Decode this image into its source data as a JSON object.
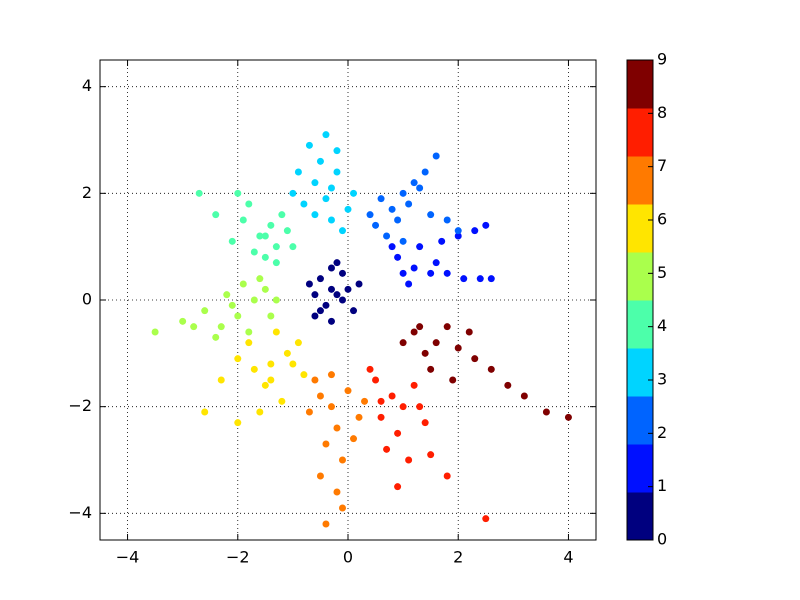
{
  "chart_data": {
    "type": "scatter",
    "xlim": [
      -4.5,
      4.5
    ],
    "ylim": [
      -4.5,
      4.5
    ],
    "xticks": [
      {
        "value": -4,
        "label": "−4"
      },
      {
        "value": -2,
        "label": "−2"
      },
      0,
      2,
      4
    ],
    "yticks": [
      {
        "value": -4,
        "label": "−4"
      },
      {
        "value": -2,
        "label": "−2"
      },
      0,
      2,
      4
    ],
    "grid": true,
    "colorbar": {
      "lim": [
        0,
        9
      ],
      "ticks": [
        0,
        1,
        2,
        3,
        4,
        5,
        6,
        7,
        8,
        9
      ],
      "colors": [
        "#00007f",
        "#0010ff",
        "#0064ff",
        "#00d4ff",
        "#4cffaa",
        "#aaff4c",
        "#ffe500",
        "#ff7a00",
        "#ff1e00",
        "#7f0000"
      ]
    },
    "series": [
      {
        "color": "#00007f",
        "x": [
          -0.3,
          -0.5,
          -0.1,
          -0.6,
          0,
          -0.4,
          -0.2,
          0.1,
          -0.7,
          -0.3,
          -0.5,
          -0.1,
          0.2,
          -0.6,
          -0.3,
          -0.2
        ],
        "values": [
          0.2,
          0.4,
          0.5,
          0.1,
          0.2,
          -0.1,
          0.7,
          -0.2,
          0.3,
          -0.4,
          -0.2,
          0,
          0.3,
          -0.3,
          0.6,
          0.1
        ]
      },
      {
        "color": "#0010ff",
        "x": [
          0.9,
          1.2,
          1.5,
          1.8,
          2.1,
          2.4,
          2.6,
          1.0,
          1.3,
          1.7,
          2.0,
          2.3,
          2.5,
          1.1,
          1.6,
          0.8
        ],
        "values": [
          0.8,
          0.6,
          0.5,
          0.5,
          0.4,
          0.4,
          0.4,
          0.5,
          1.0,
          1.1,
          1.2,
          1.3,
          1.4,
          0.3,
          0.7,
          1.0
        ]
      },
      {
        "color": "#0064ff",
        "x": [
          0.5,
          0.8,
          1.0,
          1.2,
          1.4,
          1.6,
          0.7,
          0.9,
          1.1,
          1.3,
          0.6,
          1.5,
          1.8,
          0.4,
          1.0,
          2.0
        ],
        "values": [
          1.4,
          1.7,
          2.0,
          2.2,
          2.4,
          2.7,
          1.2,
          1.5,
          1.8,
          2.1,
          1.9,
          1.6,
          1.5,
          1.6,
          1.1,
          1.3
        ]
      },
      {
        "color": "#00d4ff",
        "x": [
          -0.4,
          -0.6,
          -0.2,
          -0.8,
          0,
          -0.5,
          -0.3,
          -0.7,
          0.1,
          -0.4,
          -0.9,
          -0.1,
          -0.6,
          -0.3,
          -0.2,
          -1.0
        ],
        "values": [
          1.9,
          2.2,
          2.4,
          1.8,
          1.7,
          2.6,
          1.5,
          2.9,
          2.0,
          3.1,
          2.4,
          1.3,
          1.6,
          2.1,
          2.8,
          2.0
        ]
      },
      {
        "color": "#4cffaa",
        "x": [
          -1.6,
          -1.3,
          -1.9,
          -1.1,
          -1.5,
          -2.1,
          -1.8,
          -1.2,
          -1.4,
          -2.4,
          -1.7,
          -1.0,
          -2.0,
          -1.5,
          -2.7,
          -1.3
        ],
        "values": [
          1.2,
          1.0,
          1.5,
          1.3,
          0.8,
          1.1,
          1.8,
          1.6,
          1.4,
          1.6,
          0.9,
          1.0,
          2.0,
          1.2,
          2.0,
          0.7
        ]
      },
      {
        "color": "#aaff4c",
        "x": [
          -2.0,
          -1.7,
          -2.3,
          -1.5,
          -2.6,
          -1.9,
          -2.2,
          -1.4,
          -2.8,
          -1.8,
          -2.4,
          -3.0,
          -1.6,
          -2.1,
          -3.5,
          -1.3
        ],
        "values": [
          -0.3,
          0,
          -0.5,
          0.2,
          -0.2,
          0.3,
          0.1,
          -0.3,
          -0.5,
          -0.6,
          -0.7,
          -0.4,
          0.4,
          -0.1,
          -0.6,
          0
        ]
      },
      {
        "color": "#ffe500",
        "x": [
          -1.4,
          -1.1,
          -1.7,
          -0.9,
          -1.5,
          -2.0,
          -1.2,
          -1.8,
          -0.8,
          -1.6,
          -2.3,
          -1.3,
          -2.0,
          -1.0,
          -2.6,
          -1.4
        ],
        "values": [
          -1.2,
          -1.0,
          -1.3,
          -0.8,
          -1.6,
          -1.1,
          -1.9,
          -0.8,
          -1.4,
          -2.1,
          -1.5,
          -0.6,
          -2.3,
          -1.2,
          -2.1,
          -1.5
        ]
      },
      {
        "color": "#ff7a00",
        "x": [
          -0.3,
          0,
          -0.5,
          -0.2,
          0.2,
          -0.6,
          -0.4,
          -0.1,
          -0.3,
          -0.5,
          0.1,
          -0.2,
          -0.7,
          -0.4,
          0.3,
          -0.1
        ],
        "values": [
          -2.0,
          -1.7,
          -1.8,
          -2.4,
          -2.2,
          -1.5,
          -2.7,
          -3.0,
          -1.4,
          -3.3,
          -2.6,
          -3.6,
          -2.1,
          -4.2,
          -1.9,
          -3.9
        ]
      },
      {
        "color": "#ff1e00",
        "x": [
          0.8,
          0.5,
          1.0,
          0.6,
          1.2,
          0.9,
          0.4,
          1.4,
          0.7,
          1.1,
          0.6,
          1.5,
          1.8,
          0.9,
          1.3,
          2.5
        ],
        "values": [
          -1.8,
          -1.5,
          -2.0,
          -2.2,
          -1.6,
          -2.5,
          -1.3,
          -2.3,
          -2.8,
          -3.0,
          -1.9,
          -2.9,
          -3.3,
          -3.5,
          -2.0,
          -4.1
        ]
      },
      {
        "color": "#7f0000",
        "x": [
          1.6,
          1.2,
          2.0,
          1.4,
          1.8,
          2.3,
          1.0,
          2.6,
          1.5,
          2.9,
          1.9,
          3.2,
          2.2,
          3.6,
          4.0,
          1.3
        ],
        "values": [
          -0.8,
          -0.6,
          -0.9,
          -1.0,
          -0.5,
          -1.1,
          -0.8,
          -1.3,
          -1.3,
          -1.6,
          -1.5,
          -1.8,
          -0.6,
          -2.1,
          -2.2,
          -0.5
        ]
      }
    ]
  }
}
